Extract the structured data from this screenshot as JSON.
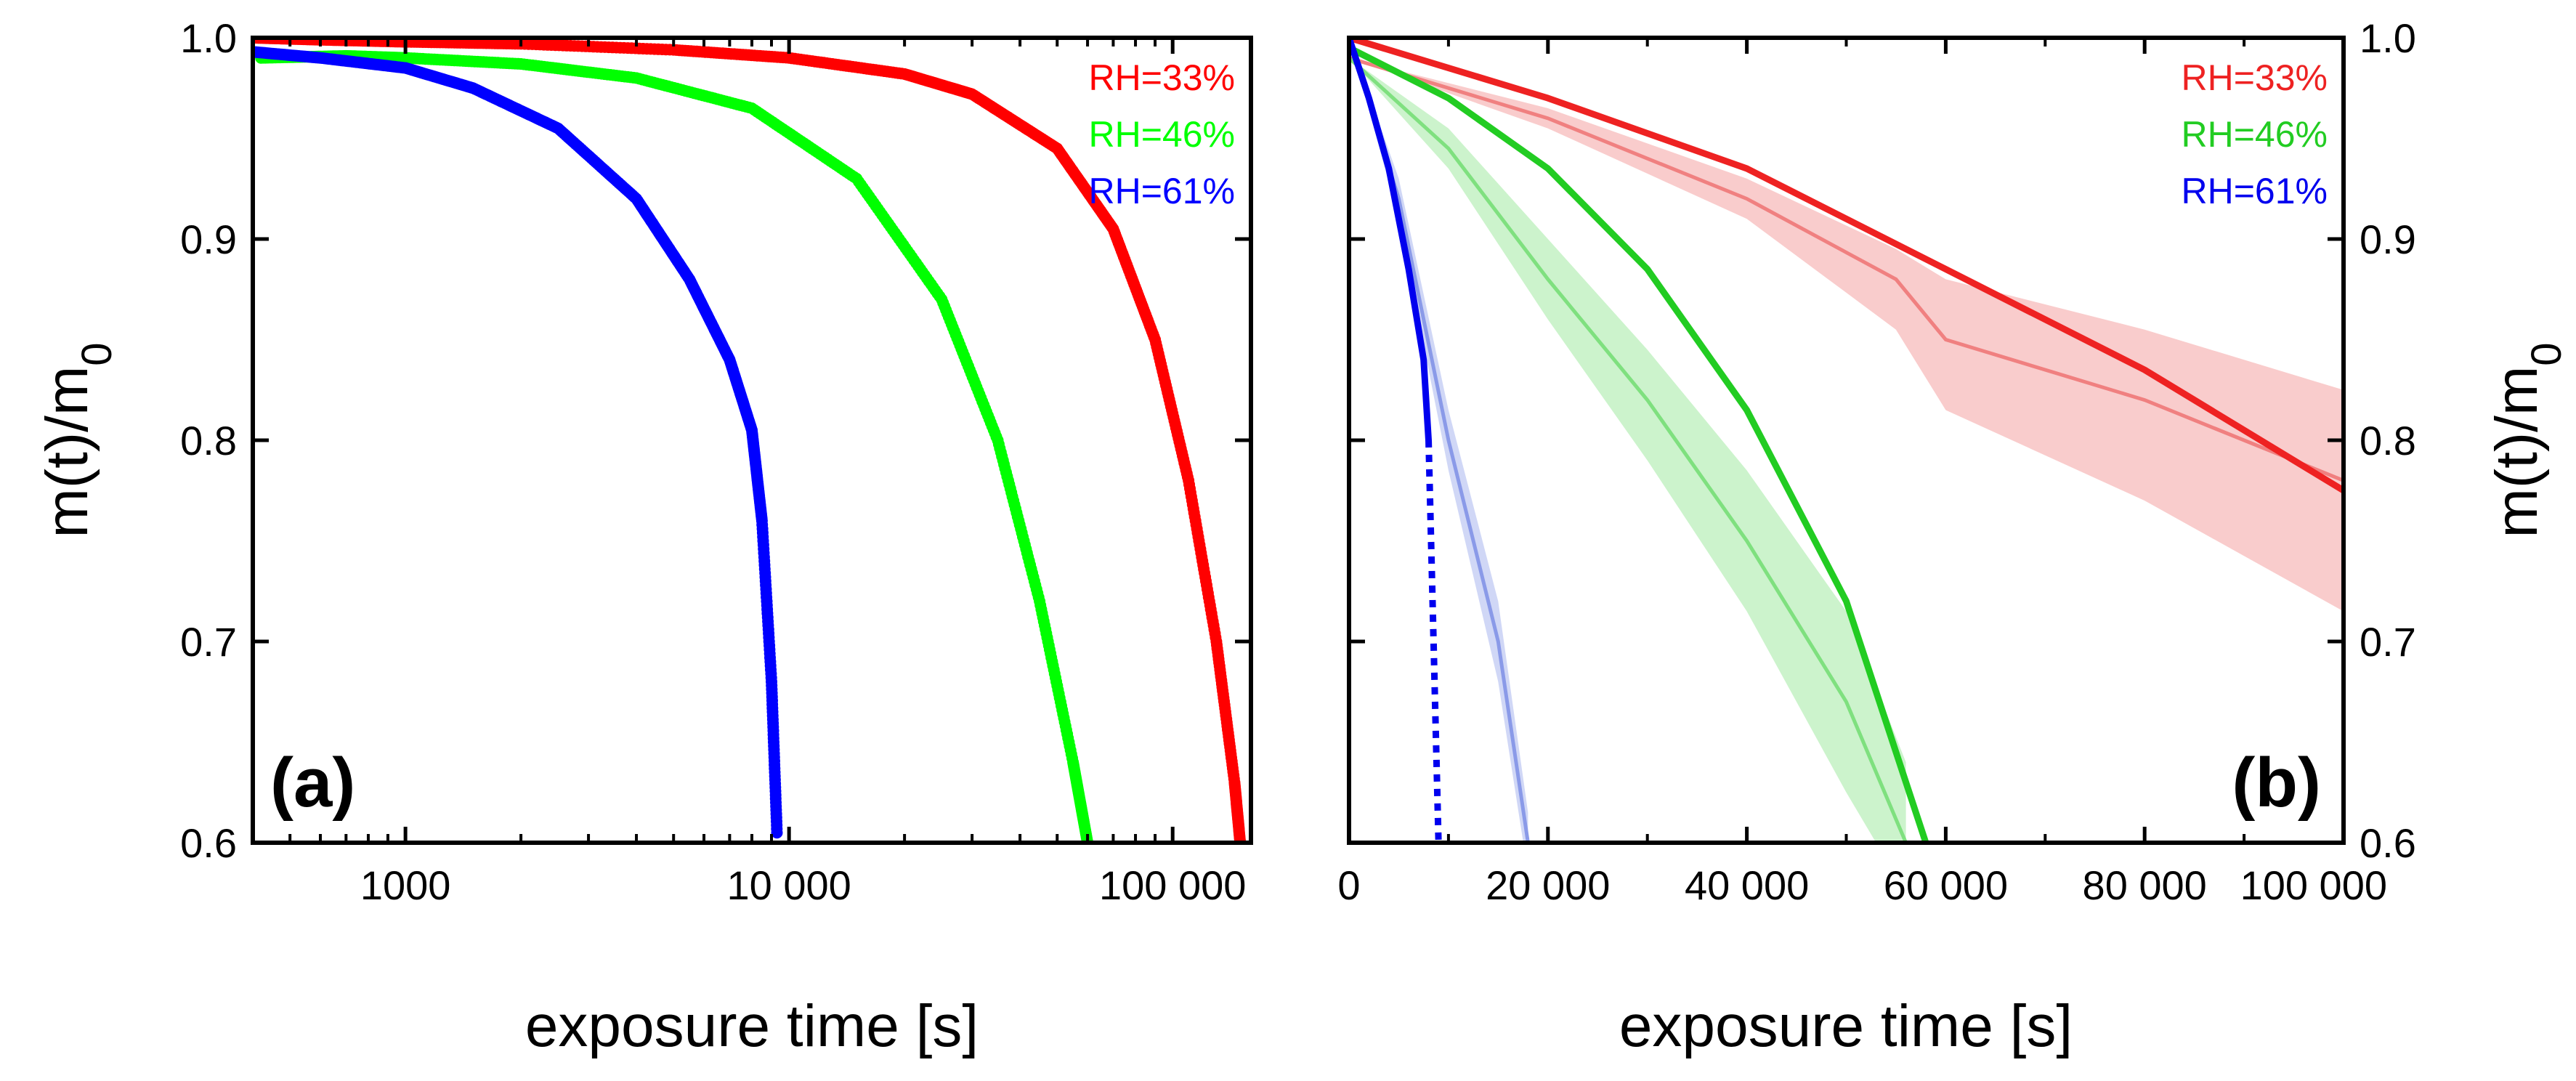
{
  "chart_data": [
    {
      "type": "scatter",
      "panel_label": "(a)",
      "xlabel": "exposure time [s]",
      "ylabel": "m(t)/m",
      "ylabel_sub": "0",
      "xscale": "log",
      "xlim": [
        400,
        160000
      ],
      "ylim": [
        0.6,
        1.0
      ],
      "x_ticks": [
        1000,
        10000,
        100000
      ],
      "x_tick_labels": [
        "1000",
        "10 000",
        "100 000"
      ],
      "y_ticks": [
        0.6,
        0.7,
        0.8,
        0.9,
        1.0
      ],
      "y_tick_labels": [
        "0.6",
        "0.7",
        "0.8",
        "0.9",
        "1.0"
      ],
      "legend_position": "top-right",
      "series": [
        {
          "name": "RH=33%",
          "color": "#ff0000",
          "x": [
            400,
            600,
            1000,
            2000,
            5000,
            10000,
            20000,
            30000,
            50000,
            70000,
            90000,
            110000,
            130000,
            145000,
            150000
          ],
          "y": [
            1.0,
            0.999,
            0.998,
            0.997,
            0.994,
            0.99,
            0.982,
            0.972,
            0.945,
            0.905,
            0.85,
            0.78,
            0.7,
            0.63,
            0.6
          ]
        },
        {
          "name": "RH=46%",
          "color": "#00ff00",
          "x": [
            420,
            700,
            1000,
            2000,
            4000,
            8000,
            15000,
            25000,
            35000,
            45000,
            55000,
            60000
          ],
          "y": [
            0.99,
            0.991,
            0.99,
            0.987,
            0.98,
            0.965,
            0.93,
            0.87,
            0.8,
            0.72,
            0.64,
            0.6
          ]
        },
        {
          "name": "RH=61%",
          "color": "#0000ff",
          "x": [
            400,
            600,
            1000,
            1500,
            2500,
            4000,
            5500,
            7000,
            8000,
            8500,
            9000,
            9300
          ],
          "y": [
            0.993,
            0.99,
            0.985,
            0.975,
            0.955,
            0.92,
            0.88,
            0.84,
            0.805,
            0.76,
            0.68,
            0.605
          ]
        }
      ]
    },
    {
      "type": "line",
      "panel_label": "(b)",
      "xlabel": "exposure time [s]",
      "ylabel": "m(t)/m",
      "ylabel_sub": "0",
      "xlim": [
        0,
        100000
      ],
      "ylim": [
        0.6,
        1.0
      ],
      "x_ticks": [
        0,
        20000,
        40000,
        60000,
        80000,
        100000
      ],
      "x_tick_labels": [
        "0",
        "20 000",
        "40 000",
        "60 000",
        "80 000",
        "100 000"
      ],
      "y_ticks": [
        0.6,
        0.7,
        0.8,
        0.9,
        1.0
      ],
      "y_tick_labels": [
        "0.6",
        "0.7",
        "0.8",
        "0.9",
        "1.0"
      ],
      "legend_position": "top-right",
      "series": [
        {
          "name": "RH=33%",
          "color": "#ee2222",
          "x": [
            0,
            20000,
            40000,
            60000,
            80000,
            100000
          ],
          "y": [
            1.0,
            0.97,
            0.935,
            0.885,
            0.835,
            0.775
          ]
        },
        {
          "name": "RH=46%",
          "color": "#22cc22",
          "x": [
            0,
            10000,
            20000,
            30000,
            40000,
            50000,
            58000
          ],
          "y": [
            0.995,
            0.97,
            0.935,
            0.885,
            0.815,
            0.72,
            0.6
          ]
        },
        {
          "name": "RH=61%",
          "color": "#0000ee",
          "x": [
            0,
            2000,
            4000,
            6000,
            7500,
            8000
          ],
          "y": [
            1.0,
            0.97,
            0.935,
            0.885,
            0.84,
            0.8
          ]
        }
      ],
      "reference_curves": [
        {
          "color": "#f08080",
          "x": [
            0,
            20000,
            40000,
            55000,
            60000,
            80000,
            100000
          ],
          "y": [
            0.99,
            0.96,
            0.92,
            0.88,
            0.85,
            0.82,
            0.78
          ],
          "band_low": [
            0.99,
            0.955,
            0.91,
            0.855,
            0.815,
            0.77,
            0.715
          ],
          "band_high": [
            0.99,
            0.965,
            0.93,
            0.895,
            0.88,
            0.855,
            0.825
          ]
        },
        {
          "color": "#7fe07f",
          "x": [
            0,
            10000,
            20000,
            30000,
            40000,
            50000,
            56000
          ],
          "y": [
            0.99,
            0.945,
            0.88,
            0.82,
            0.75,
            0.67,
            0.6
          ],
          "band_low": [
            0.99,
            0.935,
            0.86,
            0.79,
            0.715,
            0.625,
            0.575
          ],
          "band_high": [
            0.99,
            0.955,
            0.9,
            0.845,
            0.785,
            0.715,
            0.64
          ]
        },
        {
          "color": "#8a9ae8",
          "x": [
            0,
            5000,
            10000,
            15000,
            18000
          ],
          "y": [
            1.0,
            0.92,
            0.8,
            0.7,
            0.6
          ],
          "band_low": [
            1.0,
            0.91,
            0.785,
            0.68,
            0.585
          ],
          "band_high": [
            1.0,
            0.93,
            0.815,
            0.72,
            0.615
          ]
        }
      ],
      "dotted_drop": {
        "color": "#0000ee",
        "x": [
          8000,
          9000
        ],
        "y": [
          0.8,
          0.6
        ]
      }
    }
  ]
}
